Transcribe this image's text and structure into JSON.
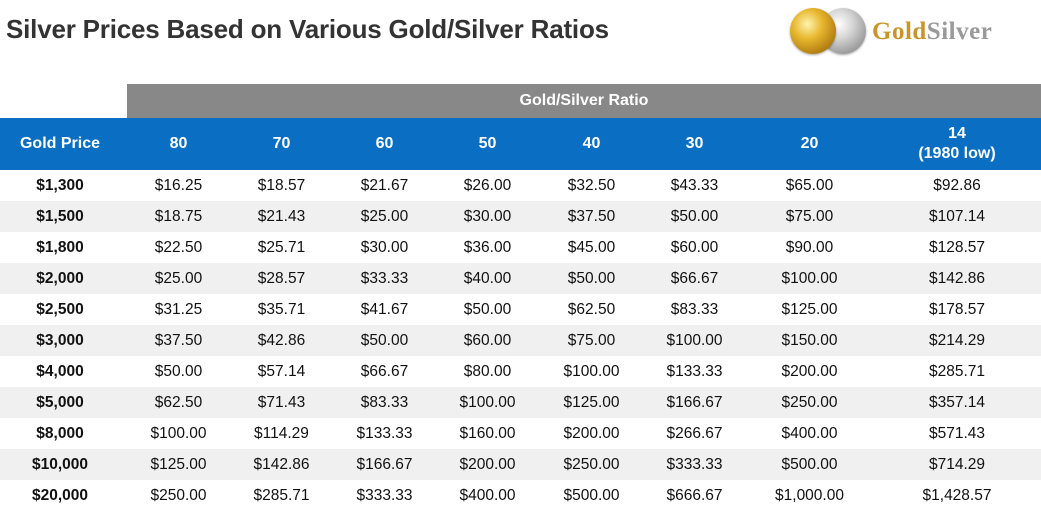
{
  "title": "Silver Prices Based on Various Gold/Silver Ratios",
  "logo": {
    "gold_text": "Gold",
    "silver_text": "Silver"
  },
  "chart_data": {
    "type": "table",
    "title": "Silver Prices Based on Various Gold/Silver Ratios",
    "group_header": "Gold/Silver Ratio",
    "row_header": "Gold Price",
    "columns": [
      {
        "label": "80"
      },
      {
        "label": "70"
      },
      {
        "label": "60"
      },
      {
        "label": "50"
      },
      {
        "label": "40"
      },
      {
        "label": "30"
      },
      {
        "label": "20"
      },
      {
        "label": "14",
        "sublabel": "(1980 low)"
      }
    ],
    "rows": [
      {
        "gold_price": "$1,300",
        "values": [
          "$16.25",
          "$18.57",
          "$21.67",
          "$26.00",
          "$32.50",
          "$43.33",
          "$65.00",
          "$92.86"
        ]
      },
      {
        "gold_price": "$1,500",
        "values": [
          "$18.75",
          "$21.43",
          "$25.00",
          "$30.00",
          "$37.50",
          "$50.00",
          "$75.00",
          "$107.14"
        ]
      },
      {
        "gold_price": "$1,800",
        "values": [
          "$22.50",
          "$25.71",
          "$30.00",
          "$36.00",
          "$45.00",
          "$60.00",
          "$90.00",
          "$128.57"
        ]
      },
      {
        "gold_price": "$2,000",
        "values": [
          "$25.00",
          "$28.57",
          "$33.33",
          "$40.00",
          "$50.00",
          "$66.67",
          "$100.00",
          "$142.86"
        ]
      },
      {
        "gold_price": "$2,500",
        "values": [
          "$31.25",
          "$35.71",
          "$41.67",
          "$50.00",
          "$62.50",
          "$83.33",
          "$125.00",
          "$178.57"
        ]
      },
      {
        "gold_price": "$3,000",
        "values": [
          "$37.50",
          "$42.86",
          "$50.00",
          "$60.00",
          "$75.00",
          "$100.00",
          "$150.00",
          "$214.29"
        ]
      },
      {
        "gold_price": "$4,000",
        "values": [
          "$50.00",
          "$57.14",
          "$66.67",
          "$80.00",
          "$100.00",
          "$133.33",
          "$200.00",
          "$285.71"
        ]
      },
      {
        "gold_price": "$5,000",
        "values": [
          "$62.50",
          "$71.43",
          "$83.33",
          "$100.00",
          "$125.00",
          "$166.67",
          "$250.00",
          "$357.14"
        ]
      },
      {
        "gold_price": "$8,000",
        "values": [
          "$100.00",
          "$114.29",
          "$133.33",
          "$160.00",
          "$200.00",
          "$266.67",
          "$400.00",
          "$571.43"
        ]
      },
      {
        "gold_price": "$10,000",
        "values": [
          "$125.00",
          "$142.86",
          "$166.67",
          "$200.00",
          "$250.00",
          "$333.33",
          "$500.00",
          "$714.29"
        ]
      },
      {
        "gold_price": "$20,000",
        "values": [
          "$250.00",
          "$285.71",
          "$333.33",
          "$400.00",
          "$500.00",
          "$666.67",
          "$1,000.00",
          "$1,428.57"
        ]
      }
    ]
  },
  "colors": {
    "header_blue": "#0a6fc2",
    "band_gray": "#888888",
    "stripe": "#f0f0f0",
    "logo_gold": "#c9952b",
    "logo_silver": "#9a9a9a"
  }
}
